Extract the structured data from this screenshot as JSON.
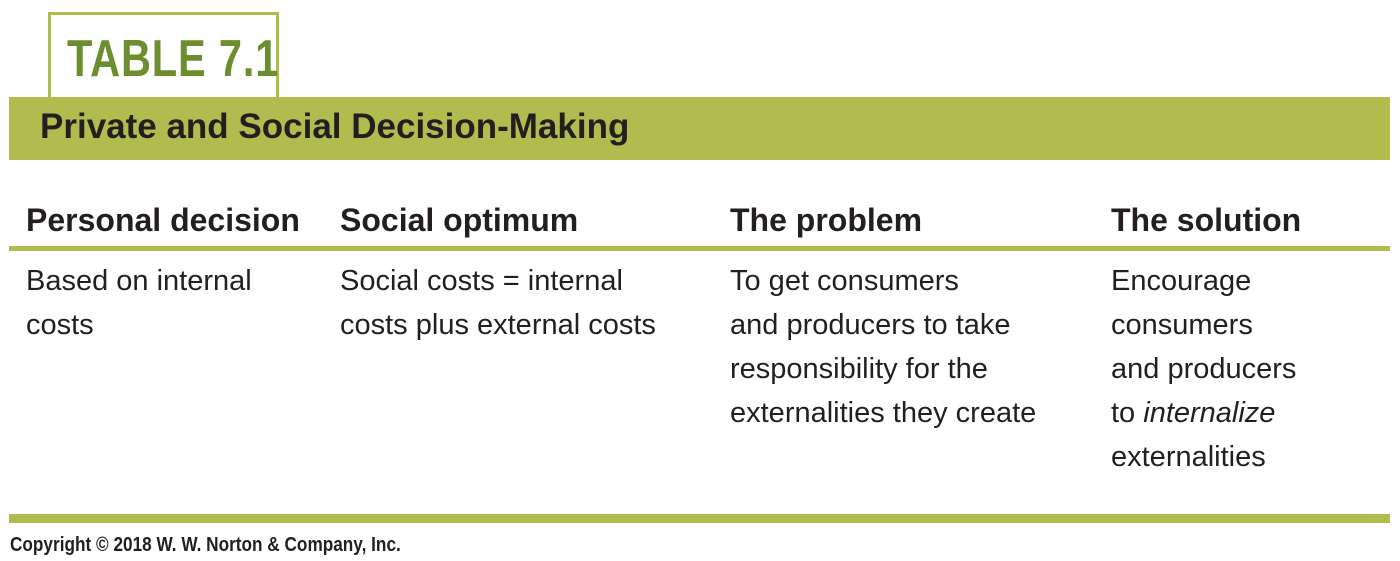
{
  "table_label": "TABLE 7.1",
  "title": "Private and Social Decision-Making",
  "columns": [
    "Personal decision",
    "Social optimum",
    "The problem",
    "The solution"
  ],
  "cells": [
    [
      "Based on internal",
      "costs"
    ],
    [
      "Social costs = internal",
      "costs plus external costs"
    ],
    [
      "To get consumers",
      "and producers to take",
      "responsibility for the",
      "externalities they create"
    ],
    [
      "Encourage",
      "consumers",
      "and producers",
      "to ",
      "internalize",
      "externalities"
    ]
  ],
  "copyright": "Copyright © 2018 W. W. Norton & Company, Inc.",
  "colors": {
    "accent": "#b0bd4e",
    "label_text": "#6b8f2f",
    "text": "#231f20"
  }
}
